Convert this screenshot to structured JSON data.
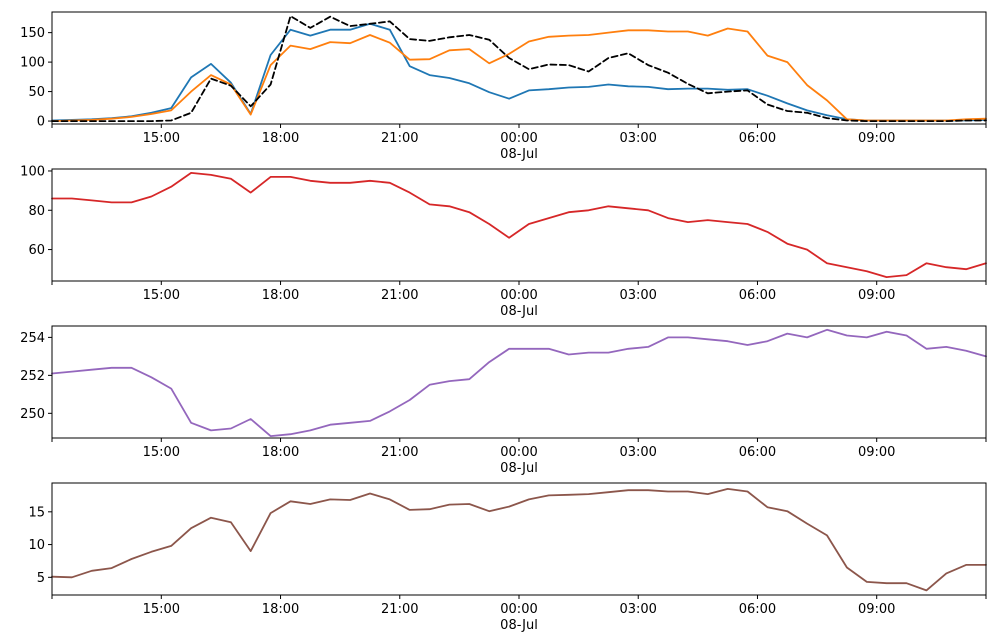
{
  "colors": {
    "blue": "#1f77b4",
    "orange": "#ff7f0e",
    "black": "#000000",
    "red": "#d62728",
    "purple": "#9467bd",
    "brown": "#8c564b"
  },
  "chart_data": [
    {
      "type": "line",
      "x_hours_ticks": [
        "15:00",
        "18:00",
        "21:00",
        "00:00",
        "03:00",
        "06:00",
        "09:00"
      ],
      "date_label": "08-Jul",
      "xlim": [
        "07-Jul 12:15",
        "08-Jul 11:45"
      ],
      "x": [
        "12:15",
        "12:45",
        "13:15",
        "13:45",
        "14:15",
        "14:45",
        "15:15",
        "15:45",
        "16:15",
        "16:45",
        "17:15",
        "17:45",
        "18:15",
        "18:45",
        "19:15",
        "19:45",
        "20:15",
        "20:45",
        "21:15",
        "21:45",
        "22:15",
        "22:45",
        "23:15",
        "23:45",
        "00:15",
        "00:45",
        "01:15",
        "01:45",
        "02:15",
        "02:45",
        "03:15",
        "03:45",
        "04:15",
        "04:45",
        "05:15",
        "05:45",
        "06:15",
        "06:45",
        "07:15",
        "07:45",
        "08:15",
        "08:45",
        "09:15",
        "09:45",
        "10:15",
        "10:45",
        "11:15",
        "11:45"
      ],
      "ylim": [
        -5,
        185
      ],
      "yticks": [
        0,
        50,
        100,
        150
      ],
      "grid": false,
      "series": [
        {
          "color": "blue",
          "dash": "solid",
          "values": [
            1,
            2,
            3,
            5,
            8,
            14,
            22,
            74,
            97,
            65,
            12,
            112,
            155,
            145,
            155,
            155,
            165,
            155,
            93,
            78,
            73,
            64,
            49,
            38,
            52,
            54,
            57,
            58,
            62,
            59,
            58,
            54,
            55,
            55,
            53,
            54,
            43,
            30,
            18,
            10,
            3,
            1,
            1,
            1,
            1,
            1,
            1,
            2
          ]
        },
        {
          "color": "orange",
          "dash": "solid",
          "values": [
            0,
            1,
            2,
            4,
            7,
            12,
            18,
            50,
            78,
            62,
            11,
            95,
            128,
            122,
            134,
            132,
            146,
            133,
            104,
            105,
            120,
            122,
            98,
            114,
            135,
            143,
            145,
            146,
            150,
            154,
            154,
            152,
            152,
            145,
            157,
            152,
            111,
            100,
            61,
            35,
            3,
            1,
            1,
            1,
            1,
            1,
            3,
            4
          ]
        },
        {
          "color": "black",
          "dash": "dashed",
          "values": [
            0,
            0,
            0,
            0,
            0,
            0,
            1,
            14,
            72,
            60,
            25,
            62,
            178,
            158,
            177,
            161,
            165,
            169,
            139,
            136,
            142,
            146,
            138,
            107,
            88,
            96,
            95,
            84,
            107,
            115,
            95,
            82,
            63,
            47,
            50,
            52,
            28,
            17,
            14,
            5,
            1,
            0,
            0,
            0,
            0,
            0,
            1,
            1
          ]
        }
      ]
    },
    {
      "type": "line",
      "x_hours_ticks": [
        "15:00",
        "18:00",
        "21:00",
        "00:00",
        "03:00",
        "06:00",
        "09:00"
      ],
      "date_label": "08-Jul",
      "ylim": [
        44,
        101
      ],
      "yticks": [
        60,
        80,
        100
      ],
      "grid": false,
      "series": [
        {
          "color": "red",
          "dash": "solid",
          "values": [
            86,
            86,
            85,
            84,
            84,
            87,
            92,
            99,
            98,
            96,
            89,
            97,
            97,
            95,
            94,
            94,
            95,
            94,
            89,
            83,
            82,
            79,
            73,
            66,
            73,
            76,
            79,
            80,
            82,
            81,
            80,
            76,
            74,
            75,
            74,
            73,
            69,
            63,
            60,
            53,
            51,
            49,
            46,
            47,
            53,
            51,
            50,
            53
          ]
        }
      ]
    },
    {
      "type": "line",
      "x_hours_ticks": [
        "15:00",
        "18:00",
        "21:00",
        "00:00",
        "03:00",
        "06:00",
        "09:00"
      ],
      "date_label": "08-Jul",
      "ylim": [
        248.7,
        254.6
      ],
      "yticks": [
        250,
        252,
        254
      ],
      "grid": false,
      "series": [
        {
          "color": "purple",
          "dash": "solid",
          "values": [
            252.1,
            252.2,
            252.3,
            252.4,
            252.4,
            251.9,
            251.3,
            249.5,
            249.1,
            249.2,
            249.7,
            248.8,
            248.9,
            249.1,
            249.4,
            249.5,
            249.6,
            250.1,
            250.7,
            251.5,
            251.7,
            251.8,
            252.7,
            253.4,
            253.4,
            253.4,
            253.1,
            253.2,
            253.2,
            253.4,
            253.5,
            254.0,
            254.0,
            253.9,
            253.8,
            253.6,
            253.8,
            254.2,
            254.0,
            254.4,
            254.1,
            254.0,
            254.3,
            254.1,
            253.4,
            253.5,
            253.3,
            253.0
          ]
        }
      ]
    },
    {
      "type": "line",
      "x_hours_ticks": [
        "15:00",
        "18:00",
        "21:00",
        "00:00",
        "03:00",
        "06:00",
        "09:00"
      ],
      "date_label": "08-Jul",
      "ylim": [
        2.3,
        19.4
      ],
      "yticks": [
        5,
        10,
        15
      ],
      "grid": false,
      "series": [
        {
          "color": "brown",
          "dash": "solid",
          "values": [
            5.1,
            5.0,
            6.0,
            6.4,
            7.8,
            8.9,
            9.8,
            12.5,
            14.1,
            13.4,
            9.0,
            14.8,
            16.6,
            16.2,
            16.9,
            16.8,
            17.8,
            16.9,
            15.3,
            15.4,
            16.1,
            16.2,
            15.1,
            15.8,
            16.9,
            17.5,
            17.6,
            17.7,
            18.0,
            18.3,
            18.3,
            18.1,
            18.1,
            17.7,
            18.5,
            18.1,
            15.7,
            15.1,
            13.2,
            11.4,
            6.5,
            4.3,
            4.1,
            4.1,
            3.0,
            5.6,
            6.9,
            6.9
          ]
        }
      ]
    }
  ]
}
